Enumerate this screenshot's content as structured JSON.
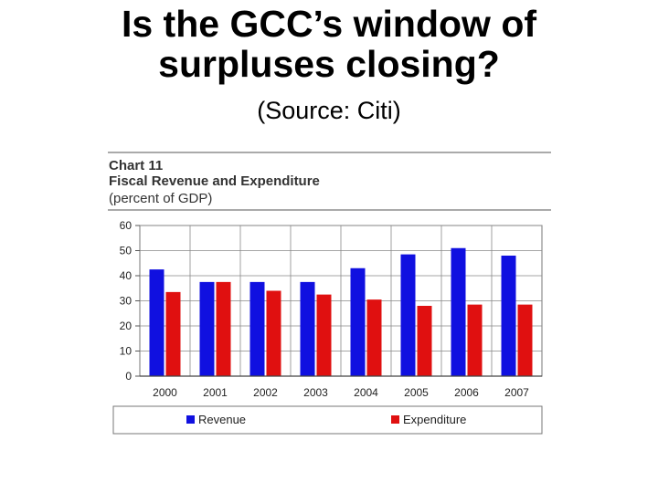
{
  "slide": {
    "title_lines": [
      "Is the GCC’s window of",
      "surpluses closing?"
    ],
    "subtitle": "(Source: Citi)"
  },
  "chart_data": {
    "type": "bar",
    "chart_label": "Chart 11",
    "title": "Fiscal Revenue and Expenditure",
    "unit": "(percent of GDP)",
    "categories": [
      "2000",
      "2001",
      "2002",
      "2003",
      "2004",
      "2005",
      "2006",
      "2007"
    ],
    "series": [
      {
        "name": "Revenue",
        "color": "#1010e0",
        "values": [
          42.5,
          37.5,
          37.5,
          37.5,
          43,
          48.5,
          51,
          48
        ]
      },
      {
        "name": "Expenditure",
        "color": "#e01010",
        "values": [
          33.5,
          37.5,
          34,
          32.5,
          30.5,
          28,
          28.5,
          28.5
        ]
      }
    ],
    "ylim": [
      0,
      60
    ],
    "yticks": [
      0,
      10,
      20,
      30,
      40,
      50,
      60
    ],
    "grid": true,
    "legend_position": "bottom"
  }
}
